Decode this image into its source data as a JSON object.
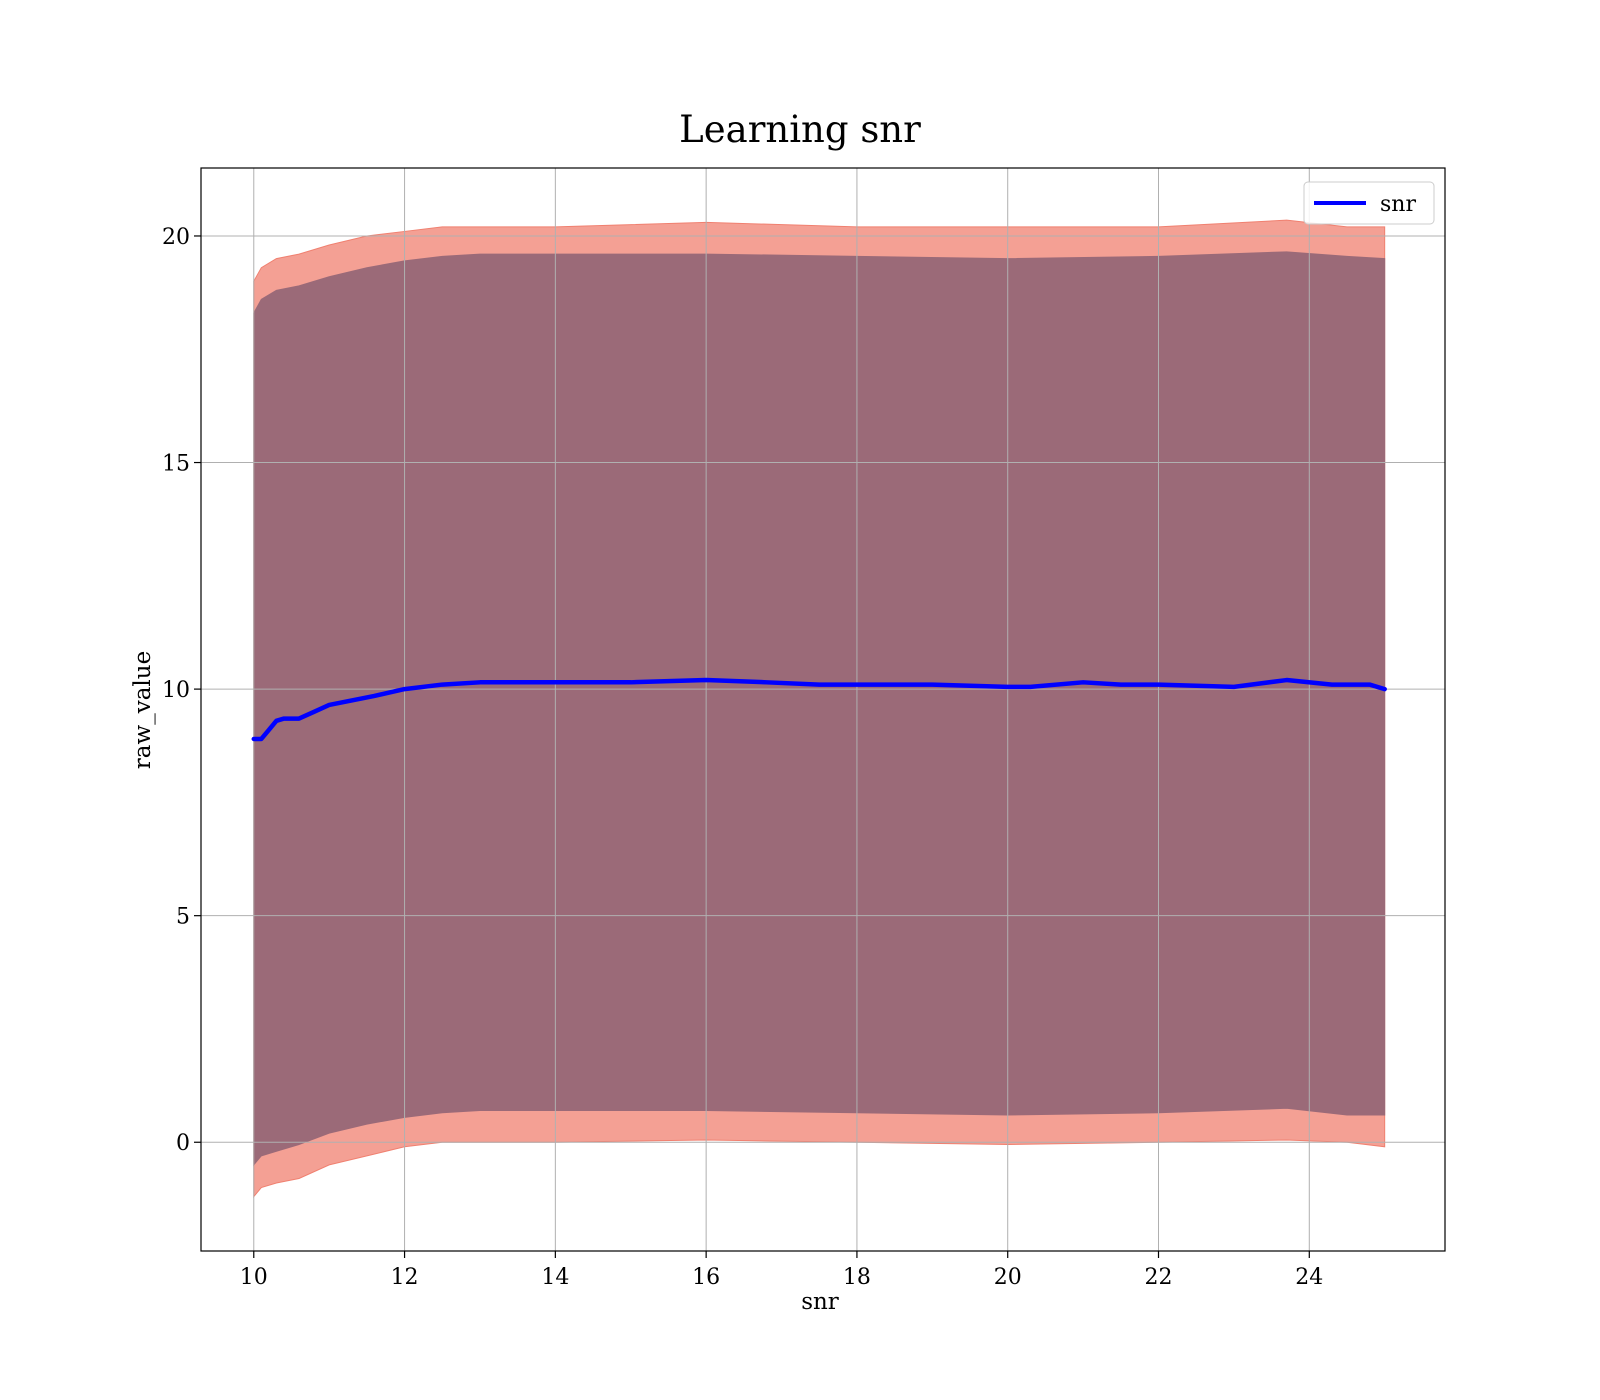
{
  "chart_data": {
    "type": "line",
    "title": "Learning snr",
    "xlabel": "snr",
    "ylabel": "raw_value",
    "xlim": [
      9.3,
      25.8
    ],
    "ylim": [
      -2.4,
      21.5
    ],
    "xticks": [
      10,
      12,
      14,
      16,
      18,
      20,
      22,
      24
    ],
    "yticks": [
      0,
      5,
      10,
      15,
      20
    ],
    "grid": true,
    "legend": {
      "position": "top-right"
    },
    "series": [
      {
        "name": "snr",
        "color": "#0000ff",
        "x": [
          10.0,
          10.1,
          10.2,
          10.3,
          10.4,
          10.6,
          10.8,
          11.0,
          11.3,
          11.6,
          12.0,
          12.5,
          13.0,
          14.0,
          15.0,
          16.0,
          16.8,
          17.5,
          18.0,
          19.0,
          20.0,
          20.3,
          21.0,
          21.5,
          22.0,
          23.0,
          23.7,
          24.3,
          24.8,
          25.0
        ],
        "y": [
          8.9,
          8.9,
          9.1,
          9.3,
          9.35,
          9.35,
          9.5,
          9.65,
          9.75,
          9.85,
          10.0,
          10.1,
          10.15,
          10.15,
          10.15,
          10.2,
          10.15,
          10.1,
          10.1,
          10.1,
          10.05,
          10.05,
          10.15,
          10.1,
          10.1,
          10.05,
          10.2,
          10.1,
          10.1,
          10.0
        ]
      }
    ],
    "bands": [
      {
        "color": "#f08070",
        "x": [
          10.0,
          10.1,
          10.3,
          10.6,
          11.0,
          11.5,
          12.0,
          12.5,
          13.0,
          14.0,
          16.0,
          18.0,
          20.0,
          22.0,
          23.7,
          24.5,
          25.0
        ],
        "lower": [
          -1.2,
          -1.0,
          -0.9,
          -0.8,
          -0.5,
          -0.3,
          -0.1,
          0.0,
          0.0,
          0.0,
          0.05,
          0.0,
          -0.05,
          0.0,
          0.05,
          0.0,
          -0.1
        ],
        "upper": [
          19.0,
          19.3,
          19.5,
          19.6,
          19.8,
          20.0,
          20.1,
          20.2,
          20.2,
          20.2,
          20.3,
          20.2,
          20.2,
          20.2,
          20.35,
          20.2,
          20.2
        ]
      },
      {
        "color": "#9b6a78",
        "x": [
          10.0,
          10.1,
          10.3,
          10.6,
          11.0,
          11.5,
          12.0,
          12.5,
          13.0,
          14.0,
          16.0,
          18.0,
          20.0,
          22.0,
          23.7,
          24.5,
          25.0
        ],
        "lower": [
          -0.5,
          -0.3,
          -0.2,
          -0.05,
          0.2,
          0.4,
          0.55,
          0.65,
          0.7,
          0.7,
          0.7,
          0.65,
          0.6,
          0.65,
          0.75,
          0.6,
          0.6
        ],
        "upper": [
          18.3,
          18.6,
          18.8,
          18.9,
          19.1,
          19.3,
          19.45,
          19.55,
          19.6,
          19.6,
          19.6,
          19.55,
          19.5,
          19.55,
          19.65,
          19.55,
          19.5
        ]
      }
    ]
  }
}
